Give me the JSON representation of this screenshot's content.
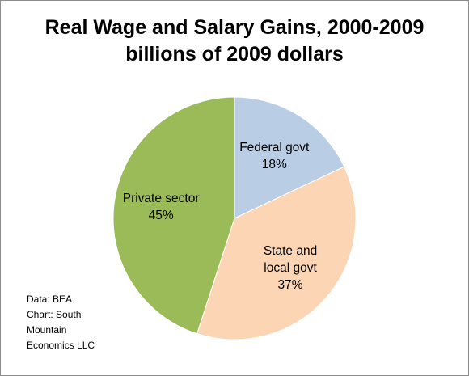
{
  "chart_data": {
    "type": "pie",
    "title": "Real Wage and Salary Gains, 2000-2009",
    "subtitle": "billions of 2009 dollars",
    "slices": [
      {
        "label": "Federal govt",
        "percent_label": "18%",
        "value": 18,
        "color": "#b9cde5"
      },
      {
        "label": "State and local govt",
        "label_lines": [
          "State and",
          "local govt"
        ],
        "percent_label": "37%",
        "value": 37,
        "color": "#fcd5b5"
      },
      {
        "label": "Private sector",
        "percent_label": "45%",
        "value": 45,
        "color": "#9bbb59"
      }
    ],
    "start_angle_deg": 0,
    "direction": "clockwise"
  },
  "credit": {
    "lines": [
      "Data: BEA",
      "Chart: South",
      "Mountain",
      "Economics LLC"
    ]
  }
}
